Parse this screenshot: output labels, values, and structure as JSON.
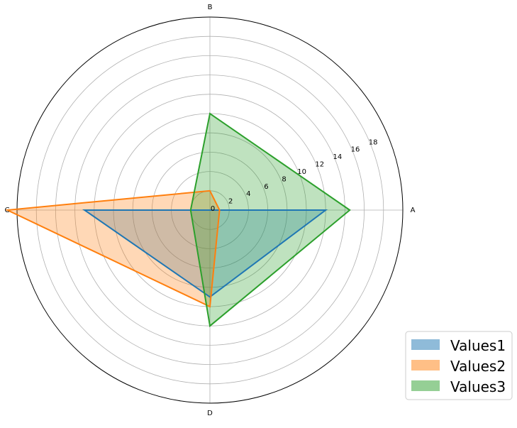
{
  "chart_data": {
    "type": "radar",
    "title": "",
    "categories": [
      "A",
      "B",
      "C",
      "D"
    ],
    "rlim": [
      0,
      20
    ],
    "r_ticks": [
      0,
      2,
      4,
      6,
      8,
      10,
      12,
      14,
      16,
      18
    ],
    "grid": true,
    "legend_position": "bottom-right",
    "series": [
      {
        "name": "Values1",
        "values": [
          12,
          0,
          13,
          9
        ],
        "color": "#1f77b4"
      },
      {
        "name": "Values2",
        "values": [
          1,
          2,
          21,
          10
        ],
        "color": "#ff7f0e"
      },
      {
        "name": "Values3",
        "values": [
          14.5,
          10,
          2,
          12
        ],
        "color": "#2ca02c"
      }
    ]
  }
}
